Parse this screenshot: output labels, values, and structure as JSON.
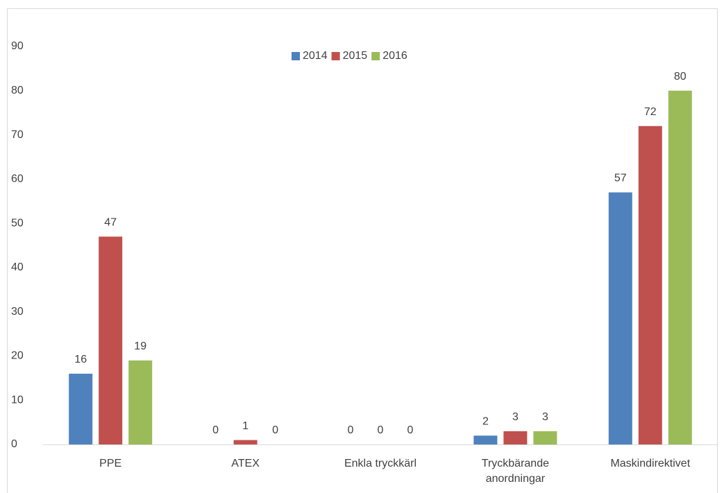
{
  "chart_data": {
    "type": "bar",
    "categories": [
      "PPE",
      "ATEX",
      "Enkla tryckkärl",
      "Tryckbärande anordningar",
      "Maskindirektivet"
    ],
    "series": [
      {
        "name": "2014",
        "color": "#4f81bd",
        "values": [
          16,
          0,
          0,
          2,
          57
        ]
      },
      {
        "name": "2015",
        "color": "#c0504d",
        "values": [
          47,
          1,
          0,
          3,
          72
        ]
      },
      {
        "name": "2016",
        "color": "#9bbb59",
        "values": [
          19,
          0,
          0,
          3,
          80
        ]
      }
    ],
    "ylim": [
      0,
      90
    ],
    "yticks": [
      0,
      10,
      20,
      30,
      40,
      50,
      60,
      70,
      80,
      90
    ],
    "grid": false,
    "legend": "top"
  }
}
